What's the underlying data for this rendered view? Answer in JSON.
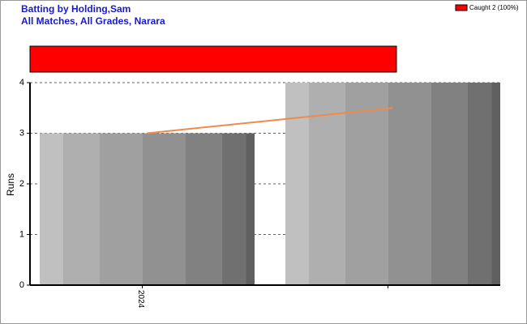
{
  "chart_data": {
    "type": "bar",
    "title": "Batting by Holding,Sam",
    "subtitle": "All Matches, All Grades, Narara",
    "dismissals": [
      {
        "name": "Caught 2 (100%)",
        "color": "#ff0000",
        "value": 100
      }
    ],
    "categories": [
      "2024",
      null
    ],
    "series": [
      {
        "type": "bar",
        "values": [
          3,
          4
        ]
      },
      {
        "type": "line",
        "color": "#f08a4b",
        "values": [
          3,
          3.5
        ]
      }
    ],
    "y_label": "Runs",
    "ylim": [
      0,
      4
    ],
    "yticks": [
      0,
      1,
      2,
      3,
      4
    ],
    "grid": true
  }
}
